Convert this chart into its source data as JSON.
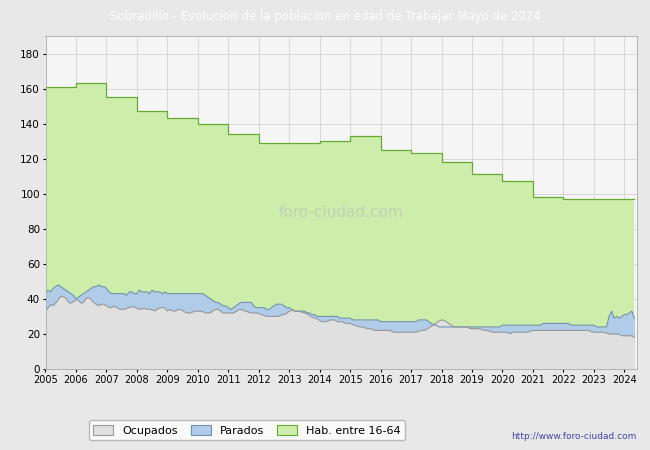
{
  "title": "Sobradillo - Evolucion de la poblacion en edad de Trabajar Mayo de 2024",
  "title_bg_color": "#4472C4",
  "title_text_color": "white",
  "ylim": [
    0,
    190
  ],
  "yticks": [
    0,
    20,
    40,
    60,
    80,
    100,
    120,
    140,
    160,
    180
  ],
  "years": [
    2005,
    2006,
    2007,
    2008,
    2009,
    2010,
    2011,
    2012,
    2013,
    2014,
    2015,
    2016,
    2017,
    2018,
    2019,
    2020,
    2021,
    2022,
    2023,
    2024
  ],
  "hab1664_annual": [
    161,
    163,
    155,
    147,
    143,
    140,
    134,
    129,
    129,
    130,
    133,
    125,
    123,
    118,
    111,
    107,
    98,
    97,
    97,
    97
  ],
  "background_color": "#e8e8e8",
  "plot_bg_color": "#f5f5f5",
  "grid_color": "#cccccc",
  "url": "http://www.foro-ciudad.com",
  "legend_labels": [
    "Ocupados",
    "Parados",
    "Hab. entre 16-64"
  ],
  "ocupados_color": "#e0e0e0",
  "parados_color": "#b0cce8",
  "hab_color": "#cceeaa",
  "ocupados_line_color": "#999999",
  "parados_line_color": "#7090b0",
  "hab_line_color": "#66aa33",
  "ocupados_data": [
    33,
    35,
    37,
    36,
    38,
    40,
    42,
    41,
    40,
    37,
    38,
    39,
    40,
    38,
    37,
    40,
    41,
    40,
    38,
    37,
    36,
    37,
    37,
    36,
    35,
    35,
    36,
    35,
    34,
    34,
    34,
    35,
    35,
    36,
    35,
    34,
    34,
    35,
    34,
    34,
    34,
    33,
    34,
    35,
    35,
    35,
    33,
    34,
    33,
    33,
    34,
    34,
    33,
    32,
    32,
    32,
    33,
    33,
    33,
    33,
    32,
    32,
    32,
    33,
    34,
    34,
    33,
    32,
    32,
    32,
    32,
    32,
    33,
    34,
    34,
    33,
    33,
    32,
    32,
    32,
    32,
    31,
    31,
    30,
    30,
    30,
    30,
    30,
    30,
    31,
    31,
    32,
    33,
    34,
    33,
    33,
    33,
    32,
    32,
    31,
    30,
    29,
    29,
    28,
    27,
    27,
    27,
    28,
    28,
    28,
    27,
    27,
    27,
    26,
    26,
    26,
    25,
    25,
    24,
    24,
    24,
    23,
    23,
    23,
    22,
    22,
    22,
    22,
    22,
    22,
    22,
    21,
    21,
    21,
    21,
    21,
    21,
    21,
    21,
    21,
    21,
    22,
    22,
    22,
    23,
    24,
    25,
    26,
    27,
    28,
    28,
    27,
    26,
    25,
    24,
    24,
    24,
    24,
    24,
    24,
    23,
    23,
    23,
    23,
    23,
    22,
    22,
    22,
    21,
    21,
    21,
    21,
    21,
    21,
    21,
    20,
    21,
    21,
    21,
    21,
    21,
    21,
    21,
    22,
    22,
    22,
    22,
    22,
    22,
    22,
    22,
    22,
    22,
    22,
    22,
    22,
    22,
    22,
    22,
    22,
    22,
    22,
    22,
    22,
    22,
    22,
    21,
    21,
    21,
    21,
    21,
    21,
    20,
    20,
    20,
    20,
    20,
    19,
    19,
    19,
    19,
    19,
    18
  ],
  "parados_data": [
    43,
    45,
    44,
    46,
    47,
    48,
    47,
    46,
    45,
    44,
    43,
    42,
    40,
    41,
    42,
    43,
    44,
    45,
    46,
    47,
    47,
    48,
    47,
    47,
    46,
    44,
    43,
    43,
    43,
    43,
    43,
    43,
    42,
    44,
    44,
    43,
    43,
    45,
    44,
    44,
    44,
    43,
    45,
    44,
    44,
    44,
    43,
    44,
    43,
    43,
    43,
    43,
    43,
    43,
    43,
    43,
    43,
    43,
    43,
    43,
    43,
    43,
    43,
    42,
    41,
    40,
    39,
    38,
    38,
    37,
    36,
    36,
    35,
    34,
    35,
    36,
    37,
    38,
    38,
    38,
    38,
    38,
    36,
    35,
    35,
    35,
    35,
    34,
    34,
    35,
    36,
    37,
    37,
    37,
    36,
    35,
    35,
    34,
    33,
    33,
    33,
    33,
    33,
    32,
    32,
    31,
    31,
    30,
    30,
    30,
    30,
    30,
    30,
    30,
    30,
    30,
    29,
    29,
    29,
    29,
    29,
    28,
    28,
    28,
    28,
    28,
    28,
    28,
    28,
    28,
    28,
    28,
    27,
    27,
    27,
    27,
    27,
    27,
    27,
    27,
    27,
    27,
    27,
    27,
    27,
    27,
    27,
    28,
    28,
    28,
    28,
    27,
    26,
    25,
    25,
    24,
    24,
    24,
    24,
    24,
    24,
    24,
    24,
    24,
    24,
    24,
    24,
    24,
    24,
    24,
    24,
    24,
    24,
    24,
    24,
    24,
    24,
    24,
    24,
    24,
    25,
    25,
    25,
    25,
    25,
    25,
    25,
    25,
    25,
    25,
    25,
    25,
    25,
    25,
    25,
    25,
    26,
    26,
    26,
    26,
    26,
    26,
    26,
    26,
    26,
    26,
    26,
    25,
    25,
    25,
    25,
    25,
    25,
    25,
    25,
    25,
    25,
    24,
    24,
    24,
    24,
    24,
    30,
    33,
    29,
    30,
    29,
    30,
    31,
    31,
    32,
    33,
    29
  ]
}
